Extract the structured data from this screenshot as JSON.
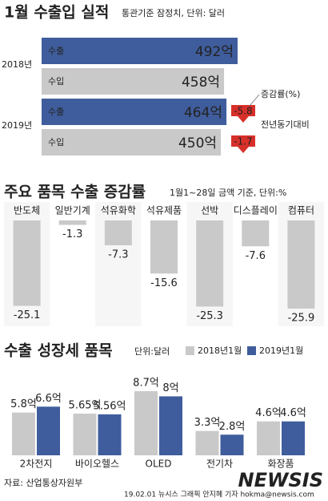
{
  "chart_data": [
    {
      "type": "hbar",
      "title": "1월 수출입 실적",
      "subtitle": "통관기준 잠정치, 단위: 달러",
      "categories": [
        "2018년",
        "2019년"
      ],
      "series": [
        {
          "name": "수출",
          "color": "#3f5d9c",
          "values": [
            492,
            464
          ],
          "value_labels": [
            "492억",
            "464억"
          ]
        },
        {
          "name": "수입",
          "color": "#c9c9c9",
          "values": [
            458,
            450
          ],
          "value_labels": [
            "458억",
            "450억"
          ]
        }
      ],
      "change_title": "증감률(%)",
      "change_subtitle": "전년동기대비",
      "change_values": [
        -5.8,
        -1.7
      ],
      "change_color": "#d7302a"
    },
    {
      "type": "bar",
      "title": "주요 품목 수출 증감률",
      "subtitle": "1월1~28일 금액 기준,  단위:%",
      "categories": [
        "반도체",
        "일반기계",
        "석유화학",
        "석유제품",
        "선박",
        "디스플레이",
        "컴퓨터"
      ],
      "values": [
        -25.1,
        -1.3,
        -7.3,
        -15.6,
        -25.3,
        -7.6,
        -25.9
      ],
      "color": "#c9c9c9"
    },
    {
      "type": "bar",
      "title": "수출 성장세 품목",
      "subtitle": "단위:달러",
      "categories": [
        "2차전지",
        "바이오헬스",
        "OLED",
        "전기차",
        "화장품"
      ],
      "series": [
        {
          "name": "2018년1월",
          "color": "#c9c9c9",
          "values": [
            5.8,
            5.65,
            8.7,
            3.3,
            4.6
          ],
          "value_labels": [
            "5.8억",
            "5.65억",
            "8.7억",
            "3.3억",
            "4.6억"
          ]
        },
        {
          "name": "2019년1월",
          "color": "#3f5d9c",
          "values": [
            6.6,
            5.56,
            8,
            2.8,
            4.6
          ],
          "value_labels": [
            "6.6억",
            "5.56억",
            "8억",
            "2.8억",
            "4.6억"
          ]
        }
      ]
    }
  ],
  "source": "자료: 산업통상자원부",
  "credit": "19.02.01 뉴시스 그래픽 안지혜 기자 hokma@newsis.com",
  "watermark": "NEWSIS"
}
